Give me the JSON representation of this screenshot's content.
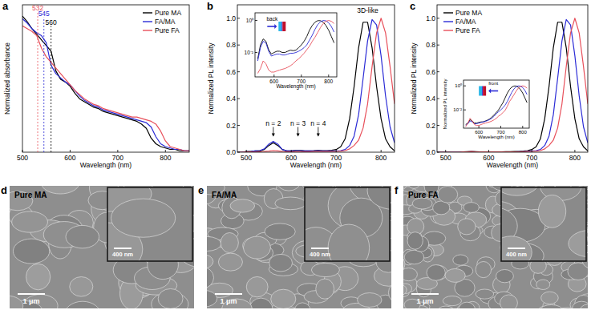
{
  "chart_data": [
    {
      "type": "line",
      "title": "a",
      "x_label": "Wavelength (nm)",
      "y_label": "Normalized absorbance",
      "x": [
        500,
        510,
        520,
        530,
        540,
        550,
        560,
        570,
        580,
        590,
        600,
        610,
        620,
        630,
        640,
        650,
        660,
        670,
        680,
        690,
        700,
        710,
        720,
        730,
        740,
        750,
        760,
        770,
        780,
        790,
        800,
        810,
        820,
        830,
        840,
        850
      ],
      "xlim": [
        500,
        850
      ],
      "xticks": [
        500,
        600,
        700,
        800
      ],
      "ylim": [
        0,
        1.05
      ],
      "tick_labels": "x",
      "legend": "upper right",
      "series": [
        {
          "name": "Pure MA",
          "color": "#000000",
          "values": [
            0.97,
            0.93,
            0.88,
            0.84,
            0.8,
            0.76,
            0.72,
            0.58,
            0.52,
            0.5,
            0.47,
            0.42,
            0.38,
            0.36,
            0.34,
            0.32,
            0.31,
            0.29,
            0.28,
            0.27,
            0.26,
            0.25,
            0.24,
            0.23,
            0.22,
            0.2,
            0.17,
            0.1,
            0.06,
            0.04,
            0.03,
            0.02,
            0.02,
            0.01,
            0.01,
            0.01
          ]
        },
        {
          "name": "FA/MA",
          "color": "#2b2bd6",
          "values": [
            0.95,
            0.92,
            0.88,
            0.85,
            0.83,
            0.78,
            0.62,
            0.56,
            0.53,
            0.5,
            0.48,
            0.44,
            0.4,
            0.37,
            0.35,
            0.33,
            0.32,
            0.3,
            0.29,
            0.28,
            0.27,
            0.26,
            0.25,
            0.24,
            0.23,
            0.22,
            0.21,
            0.18,
            0.11,
            0.06,
            0.04,
            0.03,
            0.02,
            0.02,
            0.01,
            0.01
          ]
        },
        {
          "name": "Pure FA",
          "color": "#e8505b",
          "values": [
            0.9,
            0.88,
            0.86,
            0.83,
            0.74,
            0.68,
            0.64,
            0.6,
            0.56,
            0.52,
            0.48,
            0.44,
            0.41,
            0.38,
            0.36,
            0.34,
            0.33,
            0.31,
            0.3,
            0.29,
            0.28,
            0.27,
            0.26,
            0.25,
            0.25,
            0.24,
            0.23,
            0.22,
            0.2,
            0.15,
            0.08,
            0.04,
            0.03,
            0.02,
            0.01,
            0.01
          ]
        }
      ],
      "annotations": [
        {
          "text": "532",
          "x": 532,
          "y": 1.0,
          "color": "#e8505b",
          "marker": "dashed_line"
        },
        {
          "text": "545",
          "x": 545,
          "y": 0.96,
          "color": "#2b2bd6",
          "marker": "dashed_line"
        },
        {
          "text": "560",
          "x": 560,
          "y": 0.9,
          "color": "#000000",
          "marker": "dashed_line"
        }
      ]
    },
    {
      "type": "line",
      "title": "b",
      "x_label": "Wavelength (nm)",
      "y_label": "Normalized PL intensity",
      "x": [
        480,
        490,
        500,
        510,
        520,
        530,
        540,
        550,
        560,
        570,
        580,
        590,
        600,
        610,
        620,
        630,
        640,
        650,
        660,
        670,
        680,
        690,
        700,
        710,
        720,
        730,
        740,
        750,
        760,
        770,
        780,
        790,
        800,
        810,
        820,
        830
      ],
      "xlim": [
        480,
        830
      ],
      "xticks": [
        500,
        600,
        700,
        800
      ],
      "ylim": [
        0,
        1.1
      ],
      "yticks": [
        {
          "value": 0,
          "label": "0.0"
        },
        {
          "value": 0.2,
          "label": "0.2"
        },
        {
          "value": 0.4,
          "label": "0.4"
        },
        {
          "value": 0.6,
          "label": "0.6"
        },
        {
          "value": 0.8,
          "label": "0.8"
        },
        {
          "value": 1,
          "label": "1.0"
        }
      ],
      "series": [
        {
          "name": "Pure MA",
          "color": "#000000",
          "values": [
            0,
            0,
            0.005,
            0.005,
            0.01,
            0.01,
            0.02,
            0.05,
            0.07,
            0.05,
            0.02,
            0.01,
            0.01,
            0.015,
            0.015,
            0.01,
            0.01,
            0.012,
            0.015,
            0.012,
            0.012,
            0.015,
            0.02,
            0.04,
            0.1,
            0.25,
            0.49,
            0.78,
            0.97,
            0.97,
            0.78,
            0.49,
            0.25,
            0.1,
            0.04,
            0.01
          ]
        },
        {
          "name": "FA/MA",
          "color": "#2b2bd6",
          "values": [
            0,
            0,
            0.004,
            0.005,
            0.01,
            0.012,
            0.025,
            0.06,
            0.08,
            0.06,
            0.02,
            0.01,
            0.01,
            0.012,
            0.012,
            0.01,
            0.01,
            0.01,
            0.012,
            0.01,
            0.01,
            0.01,
            0.01,
            0.012,
            0.02,
            0.05,
            0.12,
            0.28,
            0.55,
            0.83,
            0.99,
            0.95,
            0.72,
            0.42,
            0.19,
            0.07
          ]
        },
        {
          "name": "Pure FA",
          "color": "#e8505b",
          "values": [
            0,
            0,
            0.002,
            0.002,
            0.003,
            0.004,
            0.005,
            0.008,
            0.012,
            0.01,
            0.005,
            0.004,
            0.004,
            0.004,
            0.004,
            0.004,
            0.004,
            0.005,
            0.005,
            0.005,
            0.005,
            0.005,
            0.006,
            0.008,
            0.012,
            0.025,
            0.05,
            0.09,
            0.18,
            0.36,
            0.64,
            0.89,
            1.0,
            0.89,
            0.64,
            0.36
          ]
        }
      ],
      "annotations": [
        {
          "text": "n = 2",
          "x": 560,
          "y": 0.2,
          "marker": "arrow"
        },
        {
          "text": "n = 3",
          "x": 615,
          "y": 0.2,
          "marker": "arrow"
        },
        {
          "text": "n = 4",
          "x": 660,
          "y": 0.2,
          "marker": "arrow"
        },
        {
          "text": "3D-like",
          "x": 770,
          "y": 1.04,
          "marker": "none"
        }
      ]
    },
    {
      "type": "line",
      "x_label": "Wavelength (nm)",
      "log": "y",
      "x": [
        540,
        550,
        560,
        570,
        580,
        590,
        600,
        610,
        620,
        630,
        640,
        650,
        660,
        670,
        680,
        690,
        700,
        710,
        720,
        730,
        740,
        750,
        760,
        770,
        780,
        790,
        800,
        810,
        820
      ],
      "xlim": [
        530,
        830
      ],
      "xticks": [
        600,
        700,
        800
      ],
      "ylim": [
        0.0003,
        3
      ],
      "yticks": [
        {
          "value": 0.01,
          "label": "10⁻²"
        },
        {
          "value": 1,
          "label": "10⁰"
        }
      ],
      "series": [
        {
          "name": "Pure MA",
          "color": "#000000",
          "values": [
            0.004,
            0.03,
            0.07,
            0.05,
            0.015,
            0.008,
            0.01,
            0.012,
            0.012,
            0.01,
            0.01,
            0.012,
            0.014,
            0.013,
            0.014,
            0.02,
            0.03,
            0.05,
            0.1,
            0.25,
            0.49,
            0.78,
            0.97,
            0.97,
            0.78,
            0.49,
            0.25,
            0.1,
            0.04
          ]
        },
        {
          "name": "FA/MA",
          "color": "#2b2bd6",
          "values": [
            0.003,
            0.02,
            0.05,
            0.04,
            0.012,
            0.006,
            0.007,
            0.008,
            0.008,
            0.007,
            0.007,
            0.008,
            0.009,
            0.009,
            0.01,
            0.012,
            0.015,
            0.02,
            0.03,
            0.06,
            0.12,
            0.28,
            0.55,
            0.83,
            0.99,
            0.95,
            0.72,
            0.42,
            0.19
          ]
        },
        {
          "name": "Pure FA",
          "color": "#e8505b",
          "values": [
            0.0005,
            0.001,
            0.003,
            0.002,
            0.0008,
            0.0006,
            0.0006,
            0.0007,
            0.0008,
            0.0009,
            0.001,
            0.0012,
            0.0015,
            0.002,
            0.003,
            0.004,
            0.006,
            0.009,
            0.015,
            0.025,
            0.05,
            0.09,
            0.18,
            0.36,
            0.64,
            0.89,
            1.0,
            0.89,
            0.64
          ]
        }
      ],
      "annotations": [
        {
          "text": "back",
          "x": 575,
          "y": 0.6,
          "color": "#2b2bd6",
          "marker": "icon_arrow_right"
        }
      ]
    },
    {
      "type": "line",
      "title": "c",
      "x_label": "Wavelength (nm)",
      "y_label": "Normalized PL intensity",
      "x": [
        480,
        490,
        500,
        510,
        520,
        530,
        540,
        550,
        560,
        570,
        580,
        590,
        600,
        610,
        620,
        630,
        640,
        650,
        660,
        670,
        680,
        690,
        700,
        710,
        720,
        730,
        740,
        750,
        760,
        770,
        780,
        790,
        800,
        810,
        820,
        830
      ],
      "xlim": [
        480,
        830
      ],
      "xticks": [
        500,
        600,
        700,
        800
      ],
      "ylim": [
        0,
        1.1
      ],
      "yticks": [
        {
          "value": 0,
          "label": "0.0"
        },
        {
          "value": 0.2,
          "label": "0.2"
        },
        {
          "value": 0.4,
          "label": "0.4"
        },
        {
          "value": 0.6,
          "label": "0.6"
        },
        {
          "value": 0.8,
          "label": "0.8"
        },
        {
          "value": 1,
          "label": "1.0"
        }
      ],
      "legend": "upper left",
      "series": [
        {
          "name": "Pure MA",
          "color": "#000000",
          "values": [
            0,
            0,
            0,
            0,
            0,
            0,
            0.002,
            0.004,
            0.005,
            0.004,
            0.003,
            0.003,
            0.003,
            0.003,
            0.003,
            0.003,
            0.004,
            0.004,
            0.005,
            0.006,
            0.008,
            0.012,
            0.02,
            0.04,
            0.1,
            0.25,
            0.49,
            0.78,
            0.97,
            0.97,
            0.78,
            0.49,
            0.25,
            0.1,
            0.04,
            0.01
          ]
        },
        {
          "name": "FA/MA",
          "color": "#2b2bd6",
          "values": [
            0,
            0,
            0,
            0,
            0,
            0,
            0.002,
            0.003,
            0.004,
            0.003,
            0.002,
            0.002,
            0.002,
            0.002,
            0.002,
            0.002,
            0.003,
            0.003,
            0.003,
            0.004,
            0.005,
            0.007,
            0.01,
            0.012,
            0.02,
            0.05,
            0.12,
            0.28,
            0.55,
            0.83,
            0.99,
            0.95,
            0.72,
            0.42,
            0.19,
            0.07
          ]
        },
        {
          "name": "Pure FA",
          "color": "#e8505b",
          "values": [
            0,
            0,
            0,
            0,
            0,
            0,
            0.002,
            0.003,
            0.005,
            0.003,
            0.002,
            0.002,
            0.002,
            0.002,
            0.002,
            0.002,
            0.002,
            0.002,
            0.003,
            0.003,
            0.004,
            0.005,
            0.006,
            0.008,
            0.012,
            0.025,
            0.05,
            0.09,
            0.18,
            0.36,
            0.64,
            0.89,
            1.0,
            0.89,
            0.64,
            0.36
          ]
        }
      ]
    },
    {
      "type": "line",
      "x_label": "Wavelength (nm)",
      "y_label": "Normalized PL intensity",
      "log": "y",
      "x": [
        540,
        550,
        560,
        570,
        580,
        590,
        600,
        610,
        620,
        630,
        640,
        650,
        660,
        670,
        680,
        690,
        700,
        710,
        720,
        730,
        740,
        750,
        760,
        770,
        780,
        790,
        800,
        810,
        820
      ],
      "xlim": [
        530,
        830
      ],
      "xticks": [
        600,
        700,
        800
      ],
      "ylim": [
        0.0003,
        3
      ],
      "yticks": [
        {
          "value": 0.01,
          "label": "10⁻²"
        },
        {
          "value": 1,
          "label": "10⁰"
        }
      ],
      "series": [
        {
          "name": "Pure MA",
          "color": "#000000",
          "values": [
            0.0006,
            0.0008,
            0.0015,
            0.0012,
            0.0008,
            0.0008,
            0.0009,
            0.001,
            0.001,
            0.0012,
            0.0014,
            0.0018,
            0.0025,
            0.004,
            0.006,
            0.01,
            0.02,
            0.04,
            0.1,
            0.25,
            0.49,
            0.78,
            0.97,
            0.97,
            0.78,
            0.49,
            0.25,
            0.1,
            0.04
          ]
        },
        {
          "name": "FA/MA",
          "color": "#2b2bd6",
          "values": [
            0.0005,
            0.0007,
            0.0012,
            0.001,
            0.0007,
            0.0007,
            0.0008,
            0.0009,
            0.001,
            0.0011,
            0.0013,
            0.0016,
            0.002,
            0.003,
            0.005,
            0.007,
            0.01,
            0.015,
            0.025,
            0.05,
            0.12,
            0.28,
            0.55,
            0.83,
            0.99,
            0.95,
            0.72,
            0.42,
            0.19
          ]
        },
        {
          "name": "Pure FA",
          "color": "#e8505b",
          "values": [
            0.0004,
            0.0008,
            0.002,
            0.0012,
            0.0006,
            0.0005,
            0.0005,
            0.0006,
            0.0007,
            0.0008,
            0.0009,
            0.001,
            0.0012,
            0.0015,
            0.002,
            0.003,
            0.004,
            0.006,
            0.009,
            0.02,
            0.05,
            0.09,
            0.18,
            0.36,
            0.64,
            0.89,
            1.0,
            0.89,
            0.64
          ]
        }
      ],
      "annotations": [
        {
          "text": "front",
          "x": 600,
          "y": 0.6,
          "color": "#2b2bd6",
          "marker": "icon_arrow_left"
        }
      ]
    }
  ],
  "micrographs": [
    {
      "panel": "d",
      "label": "Pure MA",
      "scale_bar": "1 μm",
      "inset_scale_bar": "400 nm"
    },
    {
      "panel": "e",
      "label": "FA/MA",
      "scale_bar": "1 μm",
      "inset_scale_bar": "400 nm"
    },
    {
      "panel": "f",
      "label": "Pure FA",
      "scale_bar": "1 μm",
      "inset_scale_bar": "400 nm"
    }
  ]
}
